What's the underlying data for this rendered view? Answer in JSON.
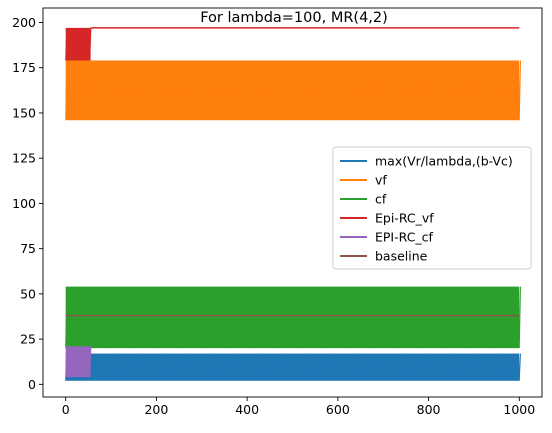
{
  "chart_data": {
    "type": "line",
    "title": "For lambda=100, MR(4,2)",
    "xlabel": "",
    "ylabel": "",
    "xlim": [
      -50,
      1050
    ],
    "ylim": [
      -7,
      208
    ],
    "xticks": [
      0,
      200,
      400,
      600,
      800,
      1000
    ],
    "yticks": [
      0,
      25,
      50,
      75,
      100,
      125,
      150,
      175,
      200
    ],
    "grid": false,
    "legend_position": "center-right",
    "series": [
      {
        "name": "max(Vr/lambda,(b-Vc)",
        "color": "#1f77b4",
        "x_range": [
          0,
          1000
        ],
        "band": [
          2,
          17
        ]
      },
      {
        "name": "vf",
        "color": "#ff7f0e",
        "x_range": [
          0,
          1000
        ],
        "band": [
          146,
          179
        ]
      },
      {
        "name": "cf",
        "color": "#2ca02c",
        "x_range": [
          0,
          1000
        ],
        "band": [
          20,
          54
        ]
      },
      {
        "name": "Epi-RC_vf",
        "color": "#d62728",
        "x_range": [
          0,
          1000
        ],
        "band": [
          179,
          197
        ],
        "dense_x_range": [
          0,
          55
        ],
        "constant_after": 197
      },
      {
        "name": "EPI-RC_cf",
        "color": "#9467bd",
        "x_range": [
          0,
          55
        ],
        "band": [
          4,
          21
        ]
      },
      {
        "name": "baseline",
        "color": "#8c564b",
        "x_range": [
          0,
          1000
        ],
        "value": 38
      }
    ]
  }
}
